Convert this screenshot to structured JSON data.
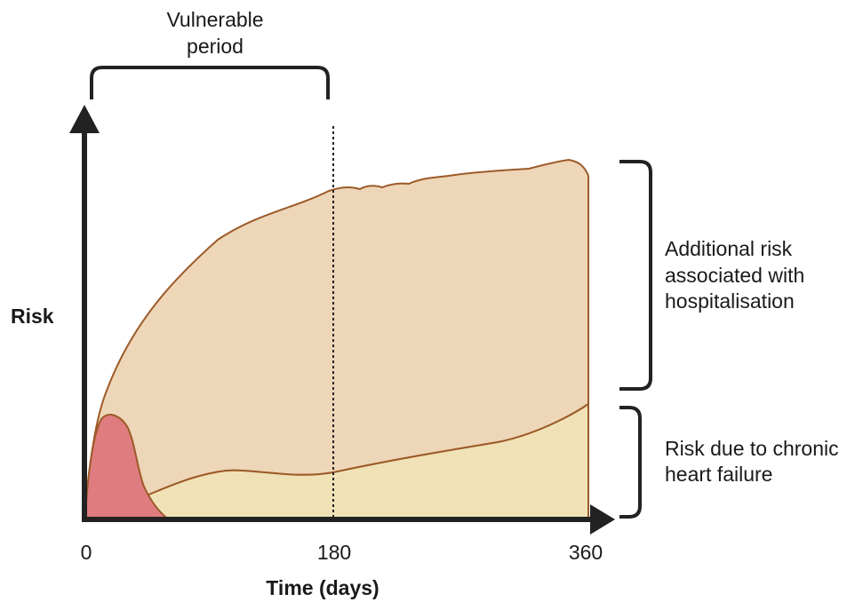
{
  "diagram": {
    "axis": {
      "y_label": "Risk",
      "x_label": "Time (days)",
      "x_ticks": [
        "0",
        "180",
        "360"
      ]
    },
    "vulnerable_period": {
      "line1": "Vulnerable",
      "line2": "period"
    },
    "annotations": {
      "additional_risk": [
        "Additional risk",
        "associated with",
        "hospitalisation"
      ],
      "chronic_risk": [
        "Risk due to chronic",
        "heart failure"
      ]
    },
    "colors": {
      "additional_risk_fill": "#eed6b8",
      "chronic_risk_fill": "#f0e2b6",
      "acute_peak_fill": "#de7c7f",
      "curve_stroke": "#9c5a28",
      "axis": "#222222"
    }
  }
}
